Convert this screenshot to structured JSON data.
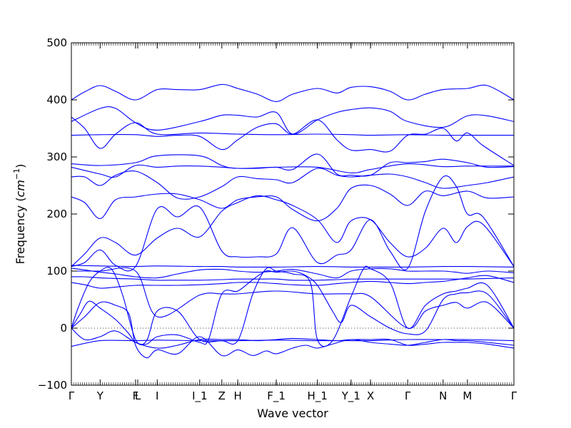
{
  "chart_data": {
    "type": "line",
    "title": "",
    "xlabel": "Wave vector",
    "ylabel": "Frequency ($cm^{-1}$)",
    "ylabel_parts": {
      "text": "Frequency (",
      "unit_base": "cm",
      "unit_exp": "−1",
      "close": ")"
    },
    "ylim": [
      -100,
      500
    ],
    "yticks": [
      -100,
      0,
      100,
      200,
      300,
      400,
      500
    ],
    "xlim": [
      0,
      1
    ],
    "zero_line": "dotted",
    "grid": false,
    "legend": "none",
    "series_color": "#0000ff",
    "kpoints": [
      {
        "label": "Γ",
        "x": 0.0
      },
      {
        "label": "Y",
        "x": 0.065
      },
      {
        "label": "F",
        "x": 0.145
      },
      {
        "label": "L",
        "x": 0.15
      },
      {
        "label": "I",
        "x": 0.194
      },
      {
        "label": "I_1",
        "x": 0.29
      },
      {
        "label": "Z",
        "x": 0.34
      },
      {
        "label": "H",
        "x": 0.376
      },
      {
        "label": "F_1",
        "x": 0.463
      },
      {
        "label": "H_1",
        "x": 0.556
      },
      {
        "label": "Y_1",
        "x": 0.632
      },
      {
        "label": "X",
        "x": 0.676
      },
      {
        "label": "Γ",
        "x": 0.76
      },
      {
        "label": "N",
        "x": 0.84
      },
      {
        "label": "M",
        "x": 0.895
      },
      {
        "label": "Γ",
        "x": 1.0
      }
    ],
    "series": [
      {
        "x": [
          0,
          0.03,
          0.065,
          0.1,
          0.145,
          0.194,
          0.24,
          0.29,
          0.34,
          0.376,
          0.42,
          0.463,
          0.5,
          0.556,
          0.6,
          0.632,
          0.676,
          0.72,
          0.76,
          0.8,
          0.84,
          0.895,
          0.94,
          1.0
        ],
        "values": [
          400,
          414,
          425,
          415,
          400,
          418,
          418,
          418,
          427,
          420,
          410,
          397,
          410,
          420,
          412,
          422,
          423,
          415,
          400,
          410,
          418,
          420,
          425,
          400
        ]
      },
      {
        "x": [
          0,
          0.065,
          0.1,
          0.145,
          0.194,
          0.29,
          0.34,
          0.376,
          0.42,
          0.463,
          0.5,
          0.556,
          0.6,
          0.632,
          0.676,
          0.72,
          0.76,
          0.84,
          0.895,
          0.94,
          1.0
        ],
        "values": [
          362,
          385,
          385,
          360,
          347,
          362,
          373,
          373,
          370,
          378,
          340,
          365,
          378,
          383,
          386,
          380,
          362,
          352,
          372,
          372,
          362
        ]
      },
      {
        "x": [
          0,
          0.03,
          0.065,
          0.1,
          0.145,
          0.194,
          0.29,
          0.376,
          0.463,
          0.556,
          0.632,
          0.676,
          0.76,
          0.84,
          0.895,
          1.0
        ],
        "values": [
          370,
          350,
          315,
          340,
          360,
          340,
          342,
          340,
          339,
          340,
          339,
          338,
          339,
          338,
          338,
          338
        ]
      },
      {
        "x": [
          0,
          0.065,
          0.145,
          0.194,
          0.24,
          0.29,
          0.34,
          0.376,
          0.42,
          0.463,
          0.5,
          0.556,
          0.6,
          0.632,
          0.676,
          0.72,
          0.76,
          0.8,
          0.84,
          0.87,
          0.895,
          0.93,
          1.0
        ],
        "values": [
          338,
          339,
          339,
          336,
          338,
          336,
          313,
          330,
          352,
          358,
          340,
          365,
          330,
          312,
          313,
          310,
          338,
          340,
          350,
          328,
          342,
          320,
          285
        ]
      },
      {
        "x": [
          0,
          0.065,
          0.145,
          0.194,
          0.29,
          0.34,
          0.376,
          0.463,
          0.556,
          0.632,
          0.676,
          0.76,
          0.84,
          0.895,
          1.0
        ],
        "values": [
          288,
          285,
          290,
          302,
          302,
          285,
          280,
          282,
          282,
          272,
          278,
          288,
          283,
          284,
          284
        ]
      },
      {
        "x": [
          0,
          0.065,
          0.1,
          0.145,
          0.194,
          0.24,
          0.29,
          0.34,
          0.376,
          0.42,
          0.463,
          0.5,
          0.556,
          0.6,
          0.632,
          0.676,
          0.72,
          0.76,
          0.8,
          0.84,
          0.895,
          0.94,
          1.0
        ],
        "values": [
          282,
          270,
          265,
          285,
          282,
          284,
          284,
          282,
          280,
          280,
          282,
          278,
          305,
          270,
          268,
          268,
          290,
          290,
          292,
          296,
          290,
          282,
          283
        ]
      },
      {
        "x": [
          0,
          0.03,
          0.065,
          0.1,
          0.145,
          0.194,
          0.24,
          0.29,
          0.34,
          0.376,
          0.42,
          0.463,
          0.5,
          0.556,
          0.6,
          0.632,
          0.676,
          0.72,
          0.76,
          0.8,
          0.84,
          0.895,
          0.94,
          1.0
        ],
        "values": [
          265,
          265,
          250,
          268,
          275,
          255,
          228,
          230,
          248,
          265,
          262,
          260,
          255,
          280,
          268,
          265,
          268,
          270,
          265,
          255,
          245,
          250,
          255,
          265
        ]
      },
      {
        "x": [
          0,
          0.03,
          0.065,
          0.1,
          0.145,
          0.194,
          0.24,
          0.29,
          0.34,
          0.376,
          0.42,
          0.463,
          0.5,
          0.556,
          0.6,
          0.632,
          0.676,
          0.72,
          0.76,
          0.8,
          0.84,
          0.895,
          0.94,
          1.0
        ],
        "values": [
          230,
          220,
          192,
          225,
          230,
          235,
          235,
          225,
          210,
          225,
          230,
          230,
          208,
          188,
          210,
          245,
          250,
          235,
          215,
          240,
          232,
          240,
          228,
          230
        ]
      },
      {
        "x": [
          0,
          0.03,
          0.065,
          0.1,
          0.145,
          0.194,
          0.24,
          0.29,
          0.34,
          0.376,
          0.42,
          0.463,
          0.5,
          0.556,
          0.6,
          0.632,
          0.676,
          0.72,
          0.76,
          0.8,
          0.84,
          0.87,
          0.895,
          0.93,
          1.0
        ],
        "values": [
          108,
          130,
          158,
          150,
          128,
          158,
          175,
          160,
          205,
          220,
          232,
          225,
          215,
          190,
          150,
          188,
          190,
          150,
          125,
          140,
          175,
          150,
          178,
          182,
          108
        ]
      },
      {
        "x": [
          0,
          0.03,
          0.065,
          0.1,
          0.145,
          0.194,
          0.24,
          0.29,
          0.34,
          0.376,
          0.42,
          0.463,
          0.5,
          0.556,
          0.6,
          0.632,
          0.676,
          0.72,
          0.76,
          0.8,
          0.84,
          0.87,
          0.895,
          0.93,
          1.0
        ],
        "values": [
          108,
          115,
          137,
          110,
          108,
          209,
          195,
          212,
          135,
          125,
          125,
          130,
          176,
          115,
          128,
          137,
          190,
          135,
          105,
          205,
          265,
          248,
          200,
          195,
          108
        ]
      },
      {
        "x": [
          0,
          0.065,
          0.145,
          0.194,
          0.29,
          0.34,
          0.376,
          0.463,
          0.556,
          0.632,
          0.676,
          0.76,
          0.84,
          0.895,
          1.0
        ],
        "values": [
          110,
          109,
          108,
          109,
          108,
          108,
          107,
          107,
          108,
          107,
          107,
          107,
          108,
          108,
          107
        ]
      },
      {
        "x": [
          0,
          0.03,
          0.065,
          0.1,
          0.145,
          0.194,
          0.24,
          0.29,
          0.34,
          0.376,
          0.42,
          0.463,
          0.5,
          0.556,
          0.6,
          0.632,
          0.676,
          0.72,
          0.76,
          0.8,
          0.84,
          0.87,
          0.895,
          0.94,
          1.0
        ],
        "values": [
          105,
          102,
          98,
          95,
          90,
          88,
          95,
          102,
          103,
          100,
          98,
          100,
          103,
          95,
          88,
          100,
          104,
          104,
          100,
          100,
          100,
          98,
          96,
          100,
          97
        ]
      },
      {
        "x": [
          0,
          0.03,
          0.065,
          0.1,
          0.145,
          0.194,
          0.24,
          0.29,
          0.34,
          0.376,
          0.42,
          0.463,
          0.5,
          0.556,
          0.6,
          0.632,
          0.676,
          0.72,
          0.76,
          0.8,
          0.84,
          0.87,
          0.895,
          0.94,
          1.0
        ],
        "values": [
          90,
          90,
          88,
          87,
          86,
          84,
          84,
          84,
          85,
          86,
          86,
          86,
          84,
          84,
          85,
          86,
          86,
          86,
          86,
          86,
          86,
          86,
          86,
          87,
          88
        ]
      },
      {
        "x": [
          0,
          0.03,
          0.065,
          0.1,
          0.145,
          0.194,
          0.24,
          0.29,
          0.34,
          0.376,
          0.42,
          0.463,
          0.5,
          0.556,
          0.6,
          0.632,
          0.676,
          0.72,
          0.76,
          0.8,
          0.84,
          0.87,
          0.895,
          0.94,
          1.0
        ],
        "values": [
          80,
          76,
          70,
          72,
          75,
          75,
          75,
          76,
          78,
          80,
          80,
          78,
          76,
          75,
          78,
          80,
          82,
          80,
          78,
          80,
          82,
          85,
          88,
          92,
          80
        ]
      },
      {
        "x": [
          0,
          0.015,
          0.04,
          0.065,
          0.09,
          0.115,
          0.145,
          0.17,
          0.194,
          0.24,
          0.29,
          0.34,
          0.376,
          0.41,
          0.44,
          0.463,
          0.5,
          0.54,
          0.556,
          0.59,
          0.632,
          0.66,
          0.676,
          0.72,
          0.76,
          0.8,
          0.84,
          0.87,
          0.895,
          0.94,
          1.0
        ],
        "values": [
          0,
          35,
          80,
          100,
          104,
          60,
          -20,
          -22,
          30,
          30,
          -20,
          -22,
          -22,
          60,
          104,
          100,
          95,
          80,
          -20,
          -22,
          55,
          104,
          104,
          80,
          0,
          40,
          60,
          65,
          70,
          75,
          0
        ]
      },
      {
        "x": [
          0,
          0.02,
          0.04,
          0.065,
          0.1,
          0.13,
          0.145,
          0.17,
          0.194,
          0.24,
          0.29,
          0.31,
          0.34,
          0.376,
          0.41,
          0.44,
          0.463,
          0.5,
          0.53,
          0.556,
          0.59,
          0.61,
          0.632,
          0.676,
          0.72,
          0.76,
          0.8,
          0.84,
          0.87,
          0.895,
          0.94,
          1.0
        ],
        "values": [
          0,
          25,
          47,
          35,
          15,
          -10,
          -25,
          -28,
          -15,
          -12,
          -25,
          -20,
          60,
          65,
          85,
          100,
          98,
          100,
          92,
          75,
          30,
          10,
          40,
          20,
          0,
          -10,
          -5,
          50,
          60,
          62,
          60,
          0
        ]
      },
      {
        "x": [
          0,
          0.03,
          0.065,
          0.1,
          0.13,
          0.145,
          0.17,
          0.194,
          0.24,
          0.29,
          0.34,
          0.376,
          0.41,
          0.44,
          0.463,
          0.5,
          0.53,
          0.556,
          0.59,
          0.632,
          0.676,
          0.72,
          0.76,
          0.8,
          0.84,
          0.87,
          0.895,
          0.94,
          1.0
        ],
        "values": [
          0,
          20,
          45,
          40,
          25,
          -30,
          -52,
          -38,
          -45,
          -15,
          -48,
          -38,
          -48,
          -40,
          -45,
          -35,
          -30,
          -35,
          -28,
          -20,
          -25,
          -28,
          -30,
          -25,
          -20,
          -22,
          -22,
          -25,
          -30
        ]
      },
      {
        "x": [
          0,
          0.065,
          0.145,
          0.194,
          0.29,
          0.376,
          0.463,
          0.556,
          0.632,
          0.676,
          0.76,
          0.84,
          0.895,
          1.0
        ],
        "values": [
          -32,
          -22,
          -22,
          -21,
          -22,
          -22,
          -21,
          -22,
          -22,
          -22,
          -20,
          -20,
          -20,
          -22
        ]
      },
      {
        "x": [
          0,
          0.03,
          0.065,
          0.1,
          0.145,
          0.194,
          0.24,
          0.29,
          0.34,
          0.376,
          0.42,
          0.463,
          0.5,
          0.556,
          0.6,
          0.632,
          0.676,
          0.72,
          0.76,
          0.8,
          0.84,
          0.87,
          0.895,
          0.94,
          1.0
        ],
        "values": [
          0,
          -20,
          -15,
          -5,
          -25,
          -35,
          -30,
          -20,
          -20,
          -20,
          -22,
          -20,
          -18,
          -20,
          -22,
          -20,
          -20,
          -20,
          -30,
          -28,
          -25,
          -25,
          -25,
          -28,
          -35
        ]
      },
      {
        "x": [
          0,
          0.065,
          0.145,
          0.194,
          0.29,
          0.34,
          0.376,
          0.463,
          0.556,
          0.632,
          0.676,
          0.76,
          0.8,
          0.84,
          0.87,
          0.895,
          0.94,
          1.0
        ],
        "values": [
          100,
          100,
          100,
          20,
          58,
          60,
          60,
          65,
          60,
          60,
          55,
          0,
          30,
          40,
          45,
          35,
          45,
          0
        ]
      }
    ]
  }
}
